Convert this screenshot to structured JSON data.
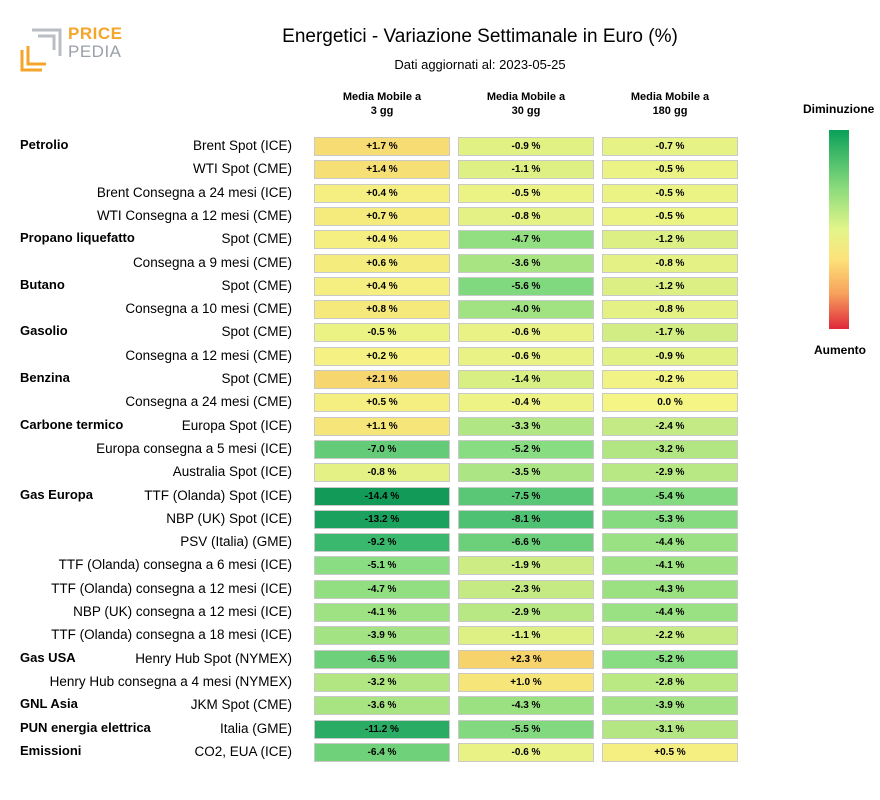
{
  "header": {
    "logo_top": "PRICE",
    "logo_bottom": "PEDIA",
    "title": "Energetici - Variazione Settimanale in Euro (%)",
    "subtitle": "Dati aggiornati al: 2023-05-25"
  },
  "columns": [
    {
      "line1": "Media Mobile a",
      "line2": "3 gg"
    },
    {
      "line1": "Media Mobile a",
      "line2": "30 gg"
    },
    {
      "line1": "Media Mobile a",
      "line2": "180 gg"
    }
  ],
  "legend": {
    "top": "Diminuzione",
    "bottom": "Aumento"
  },
  "colors": {
    "decrease": "#0aa05a",
    "neutral": "#f5f585",
    "increase": "#e0283c"
  },
  "chart_data": {
    "type": "heatmap",
    "title": "Energetici - Variazione Settimanale in Euro (%)",
    "categories": [
      "Media Mobile a 3 gg",
      "Media Mobile a 30 gg",
      "Media Mobile a 180 gg"
    ],
    "rows": [
      {
        "group": "Petrolio",
        "label": "Brent Spot (ICE)",
        "values": [
          "+1.7 %",
          "-0.9 %",
          "-0.7 %"
        ],
        "num": [
          1.7,
          -0.9,
          -0.7
        ]
      },
      {
        "group": "",
        "label": "WTI Spot (CME)",
        "values": [
          "+1.4 %",
          "-1.1 %",
          "-0.5 %"
        ],
        "num": [
          1.4,
          -1.1,
          -0.5
        ]
      },
      {
        "group": "",
        "label": "Brent Consegna a 24 mesi (ICE)",
        "values": [
          "+0.4 %",
          "-0.5 %",
          "-0.5 %"
        ],
        "num": [
          0.4,
          -0.5,
          -0.5
        ]
      },
      {
        "group": "",
        "label": "WTI Consegna a 12 mesi (CME)",
        "values": [
          "+0.7 %",
          "-0.8 %",
          "-0.5 %"
        ],
        "num": [
          0.7,
          -0.8,
          -0.5
        ]
      },
      {
        "group": "Propano liquefatto",
        "label": "Spot (CME)",
        "values": [
          "+0.4 %",
          "-4.7 %",
          "-1.2 %"
        ],
        "num": [
          0.4,
          -4.7,
          -1.2
        ]
      },
      {
        "group": "",
        "label": "Consegna a 9 mesi (CME)",
        "values": [
          "+0.6 %",
          "-3.6 %",
          "-0.8 %"
        ],
        "num": [
          0.6,
          -3.6,
          -0.8
        ]
      },
      {
        "group": "Butano",
        "label": "Spot (CME)",
        "values": [
          "+0.4 %",
          "-5.6 %",
          "-1.2 %"
        ],
        "num": [
          0.4,
          -5.6,
          -1.2
        ]
      },
      {
        "group": "",
        "label": "Consegna a 10 mesi (CME)",
        "values": [
          "+0.8 %",
          "-4.0 %",
          "-0.8 %"
        ],
        "num": [
          0.8,
          -4.0,
          -0.8
        ]
      },
      {
        "group": "Gasolio",
        "label": "Spot (CME)",
        "values": [
          "-0.5 %",
          "-0.6 %",
          "-1.7 %"
        ],
        "num": [
          -0.5,
          -0.6,
          -1.7
        ]
      },
      {
        "group": "",
        "label": "Consegna a 12 mesi (CME)",
        "values": [
          "+0.2 %",
          "-0.6 %",
          "-0.9 %"
        ],
        "num": [
          0.2,
          -0.6,
          -0.9
        ]
      },
      {
        "group": "Benzina",
        "label": "Spot (CME)",
        "values": [
          "+2.1 %",
          "-1.4 %",
          "-0.2 %"
        ],
        "num": [
          2.1,
          -1.4,
          -0.2
        ]
      },
      {
        "group": "",
        "label": "Consegna a 24 mesi (CME)",
        "values": [
          "+0.5 %",
          "-0.4 %",
          "0.0 %"
        ],
        "num": [
          0.5,
          -0.4,
          0.0
        ]
      },
      {
        "group": "Carbone termico",
        "label": "Europa Spot (ICE)",
        "values": [
          "+1.1 %",
          "-3.3 %",
          "-2.4 %"
        ],
        "num": [
          1.1,
          -3.3,
          -2.4
        ]
      },
      {
        "group": "",
        "label": "Europa consegna a 5 mesi (ICE)",
        "values": [
          "-7.0 %",
          "-5.2 %",
          "-3.2 %"
        ],
        "num": [
          -7.0,
          -5.2,
          -3.2
        ]
      },
      {
        "group": "",
        "label": "Australia Spot (ICE)",
        "values": [
          "-0.8 %",
          "-3.5 %",
          "-2.9 %"
        ],
        "num": [
          -0.8,
          -3.5,
          -2.9
        ]
      },
      {
        "group": "Gas Europa",
        "label": "TTF (Olanda) Spot (ICE)",
        "values": [
          "-14.4 %",
          "-7.5 %",
          "-5.4 %"
        ],
        "num": [
          -14.4,
          -7.5,
          -5.4
        ]
      },
      {
        "group": "",
        "label": "NBP (UK) Spot (ICE)",
        "values": [
          "-13.2 %",
          "-8.1 %",
          "-5.3 %"
        ],
        "num": [
          -13.2,
          -8.1,
          -5.3
        ]
      },
      {
        "group": "",
        "label": "PSV (Italia) (GME)",
        "values": [
          "-9.2 %",
          "-6.6 %",
          "-4.4 %"
        ],
        "num": [
          -9.2,
          -6.6,
          -4.4
        ]
      },
      {
        "group": "",
        "label": "TTF (Olanda) consegna a 6 mesi (ICE)",
        "values": [
          "-5.1 %",
          "-1.9 %",
          "-4.1 %"
        ],
        "num": [
          -5.1,
          -1.9,
          -4.1
        ]
      },
      {
        "group": "",
        "label": "TTF (Olanda) consegna a 12 mesi (ICE)",
        "values": [
          "-4.7 %",
          "-2.3 %",
          "-4.3 %"
        ],
        "num": [
          -4.7,
          -2.3,
          -4.3
        ]
      },
      {
        "group": "",
        "label": "NBP (UK) consegna a 12 mesi (ICE)",
        "values": [
          "-4.1 %",
          "-2.9 %",
          "-4.4 %"
        ],
        "num": [
          -4.1,
          -2.9,
          -4.4
        ]
      },
      {
        "group": "",
        "label": "TTF (Olanda) consegna a 18 mesi (ICE)",
        "values": [
          "-3.9 %",
          "-1.1 %",
          "-2.2 %"
        ],
        "num": [
          -3.9,
          -1.1,
          -2.2
        ]
      },
      {
        "group": "Gas USA",
        "label": "Henry Hub Spot (NYMEX)",
        "values": [
          "-6.5 %",
          "+2.3 %",
          "-5.2 %"
        ],
        "num": [
          -6.5,
          2.3,
          -5.2
        ]
      },
      {
        "group": "",
        "label": "Henry Hub consegna a 4 mesi (NYMEX)",
        "values": [
          "-3.2 %",
          "+1.0 %",
          "-2.8 %"
        ],
        "num": [
          -3.2,
          1.0,
          -2.8
        ]
      },
      {
        "group": "GNL Asia",
        "label": "JKM Spot (CME)",
        "values": [
          "-3.6 %",
          "-4.3 %",
          "-3.9 %"
        ],
        "num": [
          -3.6,
          -4.3,
          -3.9
        ]
      },
      {
        "group": "PUN energia elettrica",
        "label": "Italia (GME)",
        "values": [
          "-11.2 %",
          "-5.5 %",
          "-3.1 %"
        ],
        "num": [
          -11.2,
          -5.5,
          -3.1
        ]
      },
      {
        "group": "Emissioni",
        "label": "CO2, EUA (ICE)",
        "values": [
          "-6.4 %",
          "-0.6 %",
          "+0.5 %"
        ],
        "num": [
          -6.4,
          -0.6,
          0.5
        ]
      }
    ]
  }
}
